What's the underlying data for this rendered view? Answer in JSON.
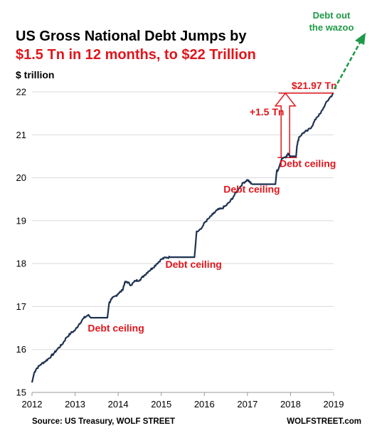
{
  "chart_data": {
    "type": "line",
    "title_line1": "US Gross National Debt Jumps by",
    "title_line2": "$1.5 Tn in 12 months, to $22 Trillion",
    "ylabel": "$ trillion",
    "xlabel": "",
    "xlim": [
      2012,
      2019
    ],
    "ylim": [
      15,
      22
    ],
    "x_ticks": [
      "2012",
      "2013",
      "2014",
      "2015",
      "2016",
      "2017",
      "2018",
      "2019"
    ],
    "y_ticks": [
      "15",
      "16",
      "17",
      "18",
      "19",
      "20",
      "21",
      "22"
    ],
    "grid": "horizontal",
    "line_color": "#1f3352",
    "series": [
      {
        "points": [
          [
            2012.0,
            15.23
          ],
          [
            2012.05,
            15.45
          ],
          [
            2012.1,
            15.55
          ],
          [
            2012.2,
            15.65
          ],
          [
            2012.3,
            15.72
          ],
          [
            2012.4,
            15.8
          ],
          [
            2012.5,
            15.9
          ],
          [
            2012.6,
            16.02
          ],
          [
            2012.7,
            16.12
          ],
          [
            2012.8,
            16.28
          ],
          [
            2012.9,
            16.38
          ],
          [
            2013.0,
            16.45
          ],
          [
            2013.1,
            16.6
          ],
          [
            2013.2,
            16.73
          ],
          [
            2013.3,
            16.8
          ],
          [
            2013.38,
            16.74
          ],
          [
            2013.5,
            16.74
          ],
          [
            2013.6,
            16.74
          ],
          [
            2013.75,
            16.74
          ],
          [
            2013.79,
            17.08
          ],
          [
            2013.85,
            17.18
          ],
          [
            2013.95,
            17.25
          ],
          [
            2014.0,
            17.3
          ],
          [
            2014.1,
            17.38
          ],
          [
            2014.15,
            17.55
          ],
          [
            2014.2,
            17.58
          ],
          [
            2014.3,
            17.5
          ],
          [
            2014.4,
            17.6
          ],
          [
            2014.5,
            17.62
          ],
          [
            2014.6,
            17.72
          ],
          [
            2014.7,
            17.82
          ],
          [
            2014.8,
            17.9
          ],
          [
            2014.9,
            18.0
          ],
          [
            2015.0,
            18.1
          ],
          [
            2015.1,
            18.14
          ],
          [
            2015.2,
            18.15
          ],
          [
            2015.4,
            18.15
          ],
          [
            2015.6,
            18.15
          ],
          [
            2015.77,
            18.15
          ],
          [
            2015.8,
            18.5
          ],
          [
            2015.82,
            18.75
          ],
          [
            2015.95,
            18.85
          ],
          [
            2016.0,
            18.95
          ],
          [
            2016.1,
            19.05
          ],
          [
            2016.2,
            19.15
          ],
          [
            2016.3,
            19.25
          ],
          [
            2016.4,
            19.28
          ],
          [
            2016.5,
            19.35
          ],
          [
            2016.6,
            19.45
          ],
          [
            2016.7,
            19.6
          ],
          [
            2016.8,
            19.75
          ],
          [
            2016.9,
            19.88
          ],
          [
            2017.0,
            19.95
          ],
          [
            2017.05,
            19.9
          ],
          [
            2017.12,
            19.85
          ],
          [
            2017.3,
            19.85
          ],
          [
            2017.5,
            19.85
          ],
          [
            2017.65,
            19.85
          ],
          [
            2017.68,
            20.15
          ],
          [
            2017.72,
            20.2
          ],
          [
            2017.8,
            20.45
          ],
          [
            2017.9,
            20.5
          ],
          [
            2017.95,
            20.56
          ],
          [
            2018.0,
            20.5
          ],
          [
            2018.1,
            20.5
          ],
          [
            2018.13,
            20.5
          ],
          [
            2018.15,
            20.75
          ],
          [
            2018.2,
            20.95
          ],
          [
            2018.3,
            21.05
          ],
          [
            2018.4,
            21.1
          ],
          [
            2018.5,
            21.2
          ],
          [
            2018.6,
            21.4
          ],
          [
            2018.7,
            21.5
          ],
          [
            2018.8,
            21.7
          ],
          [
            2018.9,
            21.85
          ],
          [
            2019.0,
            21.97
          ]
        ]
      }
    ],
    "annotations": [
      {
        "text": "Debt ceiling",
        "x": 2013.95,
        "y": 16.42
      },
      {
        "text": "Debt ceiling",
        "x": 2015.75,
        "y": 17.9
      },
      {
        "text": "Debt ceiling",
        "x": 2017.1,
        "y": 19.65
      },
      {
        "text": "Debt ceiling",
        "x": 2018.4,
        "y": 20.25
      }
    ],
    "level_label": {
      "text": "$21.97 Tn",
      "value": 21.97,
      "x_from": 2017.72,
      "x_to": 2019.0
    },
    "jump_label": {
      "text": "+1.5 Tn",
      "from": 20.47,
      "to": 21.97,
      "x": 2017.88
    },
    "green_label": {
      "line1": "Debt out",
      "line2": "the wazoo"
    },
    "annotation_color": "#e0161c",
    "green_color": "#1d9a46",
    "footer_left": "Source: US Treasury, WOLF STREET",
    "footer_right": "WOLFSTREET.com"
  }
}
